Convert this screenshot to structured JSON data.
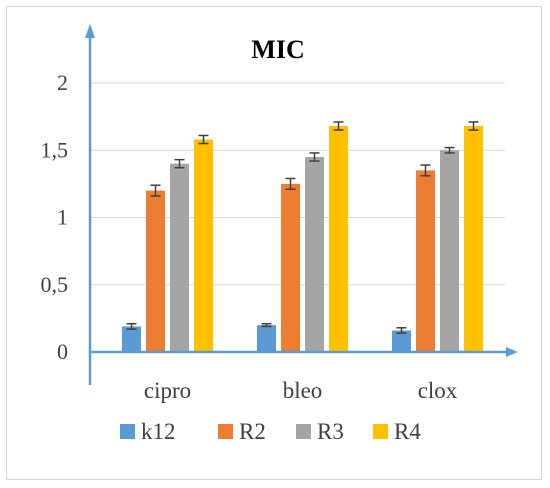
{
  "chart_data": {
    "type": "bar",
    "title": "MIC",
    "xlabel": "",
    "ylabel": "",
    "categories": [
      "cipro",
      "bleo",
      "clox"
    ],
    "ylim": [
      0,
      2.2
    ],
    "yticks": [
      0,
      0.5,
      1,
      1.5,
      2
    ],
    "ytick_labels": [
      "0",
      "0,5",
      "1",
      "1,5",
      "2"
    ],
    "grid": true,
    "legend_position": "bottom",
    "series": [
      {
        "name": "k12",
        "color": "#5b9bd5",
        "values": [
          0.19,
          0.2,
          0.16
        ],
        "errors": [
          0.02,
          0.01,
          0.02
        ]
      },
      {
        "name": "R2",
        "color": "#ed7d31",
        "values": [
          1.2,
          1.25,
          1.35
        ],
        "errors": [
          0.04,
          0.04,
          0.04
        ]
      },
      {
        "name": "R3",
        "color": "#a5a5a5",
        "values": [
          1.4,
          1.45,
          1.5
        ],
        "errors": [
          0.03,
          0.03,
          0.02
        ]
      },
      {
        "name": "R4",
        "color": "#ffc000",
        "values": [
          1.58,
          1.68,
          1.68
        ],
        "errors": [
          0.03,
          0.03,
          0.03
        ]
      }
    ],
    "axis_color": "#5b9bd5",
    "grid_color": "#d9d9d9",
    "errorbar_color": "#404040"
  }
}
